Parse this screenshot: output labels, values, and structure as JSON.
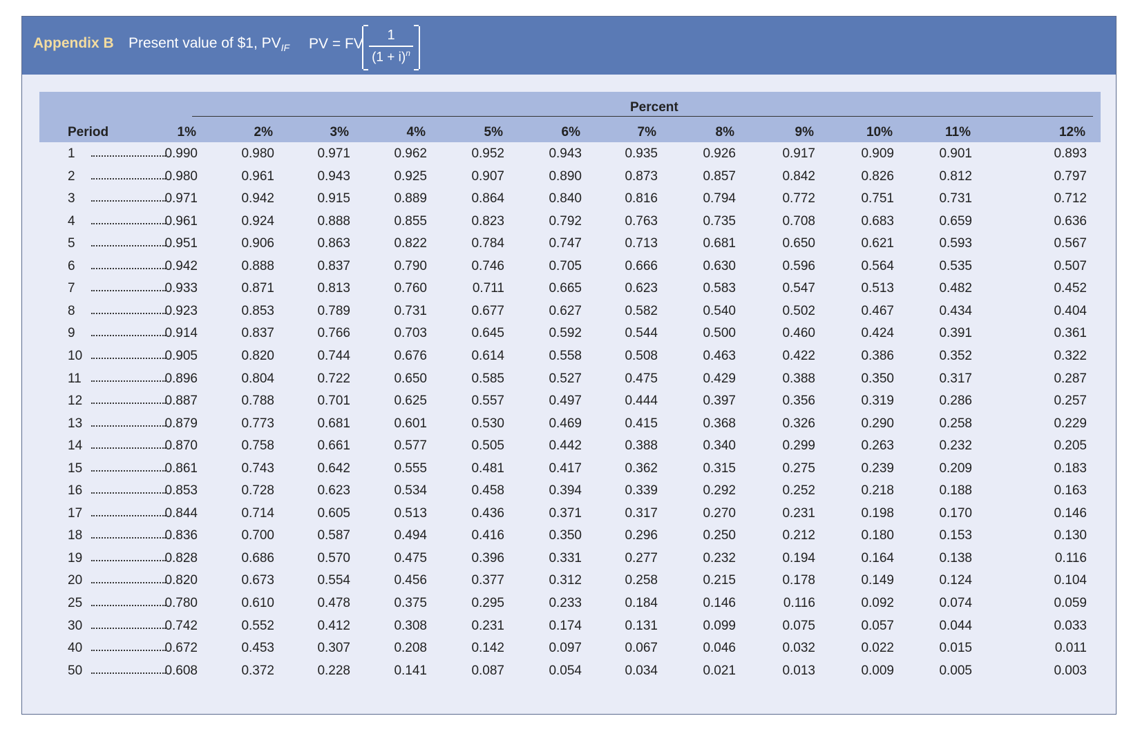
{
  "banner": {
    "appendix": "Appendix B",
    "title_main": "Present value of $1, PV",
    "title_sub": "IF",
    "formula_lhs": "PV = FV",
    "formula_num": "1",
    "formula_den": "(1 + i)",
    "formula_exp": "n"
  },
  "table": {
    "group_label": "Percent",
    "period_label": "Period",
    "columns": [
      "1%",
      "2%",
      "3%",
      "4%",
      "5%",
      "6%",
      "7%",
      "8%",
      "9%",
      "10%",
      "11%",
      "12%"
    ],
    "rows": [
      {
        "period": "1",
        "values": [
          "0.990",
          "0.980",
          "0.971",
          "0.962",
          "0.952",
          "0.943",
          "0.935",
          "0.926",
          "0.917",
          "0.909",
          "0.901",
          "0.893"
        ]
      },
      {
        "period": "2",
        "values": [
          "0.980",
          "0.961",
          "0.943",
          "0.925",
          "0.907",
          "0.890",
          "0.873",
          "0.857",
          "0.842",
          "0.826",
          "0.812",
          "0.797"
        ]
      },
      {
        "period": "3",
        "values": [
          "0.971",
          "0.942",
          "0.915",
          "0.889",
          "0.864",
          "0.840",
          "0.816",
          "0.794",
          "0.772",
          "0.751",
          "0.731",
          "0.712"
        ]
      },
      {
        "period": "4",
        "values": [
          "0.961",
          "0.924",
          "0.888",
          "0.855",
          "0.823",
          "0.792",
          "0.763",
          "0.735",
          "0.708",
          "0.683",
          "0.659",
          "0.636"
        ]
      },
      {
        "period": "5",
        "values": [
          "0.951",
          "0.906",
          "0.863",
          "0.822",
          "0.784",
          "0.747",
          "0.713",
          "0.681",
          "0.650",
          "0.621",
          "0.593",
          "0.567"
        ]
      },
      {
        "period": "6",
        "values": [
          "0.942",
          "0.888",
          "0.837",
          "0.790",
          "0.746",
          "0.705",
          "0.666",
          "0.630",
          "0.596",
          "0.564",
          "0.535",
          "0.507"
        ]
      },
      {
        "period": "7",
        "values": [
          "0.933",
          "0.871",
          "0.813",
          "0.760",
          "0.711",
          "0.665",
          "0.623",
          "0.583",
          "0.547",
          "0.513",
          "0.482",
          "0.452"
        ]
      },
      {
        "period": "8",
        "values": [
          "0.923",
          "0.853",
          "0.789",
          "0.731",
          "0.677",
          "0.627",
          "0.582",
          "0.540",
          "0.502",
          "0.467",
          "0.434",
          "0.404"
        ]
      },
      {
        "period": "9",
        "values": [
          "0.914",
          "0.837",
          "0.766",
          "0.703",
          "0.645",
          "0.592",
          "0.544",
          "0.500",
          "0.460",
          "0.424",
          "0.391",
          "0.361"
        ]
      },
      {
        "period": "10",
        "values": [
          "0.905",
          "0.820",
          "0.744",
          "0.676",
          "0.614",
          "0.558",
          "0.508",
          "0.463",
          "0.422",
          "0.386",
          "0.352",
          "0.322"
        ]
      },
      {
        "period": "11",
        "values": [
          "0.896",
          "0.804",
          "0.722",
          "0.650",
          "0.585",
          "0.527",
          "0.475",
          "0.429",
          "0.388",
          "0.350",
          "0.317",
          "0.287"
        ]
      },
      {
        "period": "12",
        "values": [
          "0.887",
          "0.788",
          "0.701",
          "0.625",
          "0.557",
          "0.497",
          "0.444",
          "0.397",
          "0.356",
          "0.319",
          "0.286",
          "0.257"
        ]
      },
      {
        "period": "13",
        "values": [
          "0.879",
          "0.773",
          "0.681",
          "0.601",
          "0.530",
          "0.469",
          "0.415",
          "0.368",
          "0.326",
          "0.290",
          "0.258",
          "0.229"
        ]
      },
      {
        "period": "14",
        "values": [
          "0.870",
          "0.758",
          "0.661",
          "0.577",
          "0.505",
          "0.442",
          "0.388",
          "0.340",
          "0.299",
          "0.263",
          "0.232",
          "0.205"
        ]
      },
      {
        "period": "15",
        "values": [
          "0.861",
          "0.743",
          "0.642",
          "0.555",
          "0.481",
          "0.417",
          "0.362",
          "0.315",
          "0.275",
          "0.239",
          "0.209",
          "0.183"
        ]
      },
      {
        "period": "16",
        "values": [
          "0.853",
          "0.728",
          "0.623",
          "0.534",
          "0.458",
          "0.394",
          "0.339",
          "0.292",
          "0.252",
          "0.218",
          "0.188",
          "0.163"
        ]
      },
      {
        "period": "17",
        "values": [
          "0.844",
          "0.714",
          "0.605",
          "0.513",
          "0.436",
          "0.371",
          "0.317",
          "0.270",
          "0.231",
          "0.198",
          "0.170",
          "0.146"
        ]
      },
      {
        "period": "18",
        "values": [
          "0.836",
          "0.700",
          "0.587",
          "0.494",
          "0.416",
          "0.350",
          "0.296",
          "0.250",
          "0.212",
          "0.180",
          "0.153",
          "0.130"
        ]
      },
      {
        "period": "19",
        "values": [
          "0.828",
          "0.686",
          "0.570",
          "0.475",
          "0.396",
          "0.331",
          "0.277",
          "0.232",
          "0.194",
          "0.164",
          "0.138",
          "0.116"
        ]
      },
      {
        "period": "20",
        "values": [
          "0.820",
          "0.673",
          "0.554",
          "0.456",
          "0.377",
          "0.312",
          "0.258",
          "0.215",
          "0.178",
          "0.149",
          "0.124",
          "0.104"
        ]
      },
      {
        "period": "25",
        "values": [
          "0.780",
          "0.610",
          "0.478",
          "0.375",
          "0.295",
          "0.233",
          "0.184",
          "0.146",
          "0.116",
          "0.092",
          "0.074",
          "0.059"
        ]
      },
      {
        "period": "30",
        "values": [
          "0.742",
          "0.552",
          "0.412",
          "0.308",
          "0.231",
          "0.174",
          "0.131",
          "0.099",
          "0.075",
          "0.057",
          "0.044",
          "0.033"
        ]
      },
      {
        "period": "40",
        "values": [
          "0.672",
          "0.453",
          "0.307",
          "0.208",
          "0.142",
          "0.097",
          "0.067",
          "0.046",
          "0.032",
          "0.022",
          "0.015",
          "0.011"
        ]
      },
      {
        "period": "50",
        "values": [
          "0.608",
          "0.372",
          "0.228",
          "0.141",
          "0.087",
          "0.054",
          "0.034",
          "0.021",
          "0.013",
          "0.009",
          "0.005",
          "0.003"
        ]
      }
    ]
  },
  "colors": {
    "banner": "#5a7ab5",
    "header_band": "#a8b8de",
    "body_bg": "#e9ecf7",
    "appendix": "#f3dca0"
  }
}
